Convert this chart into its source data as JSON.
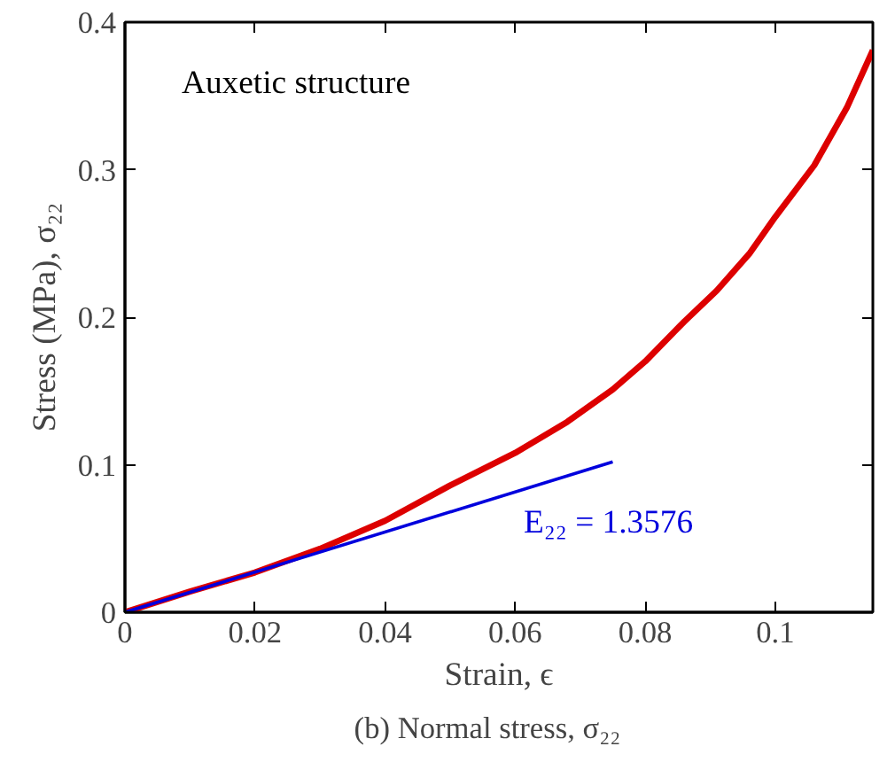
{
  "chart_data": {
    "type": "line",
    "xlabel": "Strain, ϵ",
    "ylabel": "Stress (MPa), σ₂₂",
    "xlim": [
      0,
      0.115
    ],
    "ylim": [
      0,
      0.4
    ],
    "xticks": [
      0,
      0.02,
      0.04,
      0.06,
      0.08,
      0.1
    ],
    "yticks": [
      0,
      0.1,
      0.2,
      0.3,
      0.4
    ],
    "grid": false,
    "series": [
      {
        "color": "#dd0000",
        "x": [
          0,
          0.01,
          0.02,
          0.03,
          0.04,
          0.05,
          0.06,
          0.068,
          0.075,
          0.08,
          0.086,
          0.091,
          0.096,
          0.1,
          0.106,
          0.111,
          0.115
        ],
        "values": [
          0,
          0.014,
          0.027,
          0.043,
          0.062,
          0.086,
          0.108,
          0.129,
          0.151,
          0.17,
          0.197,
          0.218,
          0.243,
          0.268,
          0.303,
          0.342,
          0.381
        ]
      },
      {
        "color": "#0000dd",
        "x": [
          0,
          0.075
        ],
        "values": [
          0,
          0.102
        ]
      }
    ],
    "annotations": [
      "Auxetic structure",
      "E₂₂ = 1.3576",
      "(b)    Normal stress, σ₂₂"
    ]
  }
}
